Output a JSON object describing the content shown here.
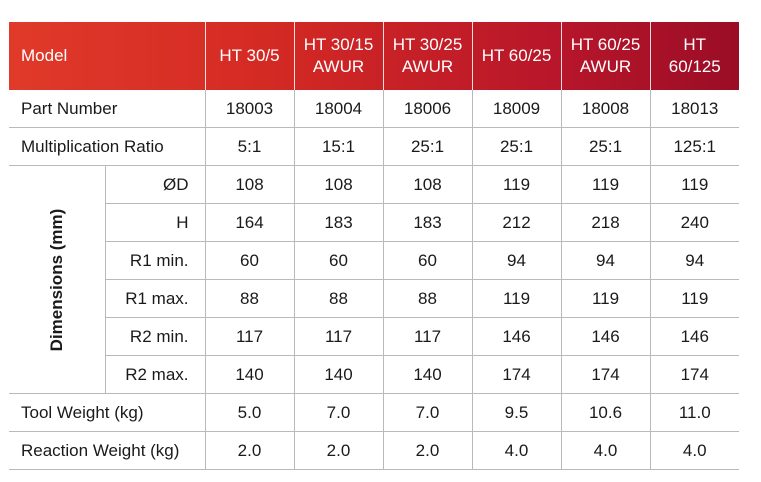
{
  "header": {
    "model_label": "Model",
    "models": [
      {
        "line1": "HT 30/5",
        "line2": ""
      },
      {
        "line1": "HT 30/15",
        "line2": "AWUR"
      },
      {
        "line1": "HT 30/25",
        "line2": "AWUR"
      },
      {
        "line1": "HT 60/25",
        "line2": ""
      },
      {
        "line1": "HT 60/25",
        "line2": "AWUR"
      },
      {
        "line1": "HT",
        "line2": "60/125"
      }
    ]
  },
  "rows": {
    "part_number": {
      "label": "Part Number",
      "values": [
        "18003",
        "18004",
        "18006",
        "18009",
        "18008",
        "18013"
      ]
    },
    "multiplication_ratio": {
      "label": "Multiplication Ratio",
      "values": [
        "5:1",
        "15:1",
        "25:1",
        "25:1",
        "25:1",
        "125:1"
      ]
    },
    "dimensions": {
      "group_label": "Dimensions (mm)",
      "items": [
        {
          "label": "ØD",
          "values": [
            "108",
            "108",
            "108",
            "119",
            "119",
            "119"
          ]
        },
        {
          "label": "H",
          "values": [
            "164",
            "183",
            "183",
            "212",
            "218",
            "240"
          ]
        },
        {
          "label": "R1 min.",
          "values": [
            "60",
            "60",
            "60",
            "94",
            "94",
            "94"
          ]
        },
        {
          "label": "R1 max.",
          "values": [
            "88",
            "88",
            "88",
            "119",
            "119",
            "119"
          ]
        },
        {
          "label": "R2 min.",
          "values": [
            "117",
            "117",
            "117",
            "146",
            "146",
            "146"
          ]
        },
        {
          "label": "R2 max.",
          "values": [
            "140",
            "140",
            "140",
            "174",
            "174",
            "174"
          ]
        }
      ]
    },
    "tool_weight": {
      "label": "Tool Weight (kg)",
      "values": [
        "5.0",
        "7.0",
        "7.0",
        "9.5",
        "10.6",
        "11.0"
      ]
    },
    "reaction_weight": {
      "label": "Reaction Weight (kg)",
      "values": [
        "2.0",
        "2.0",
        "2.0",
        "4.0",
        "4.0",
        "4.0"
      ]
    }
  },
  "colors": {
    "header_start": "#e03a2a",
    "header_end": "#9a0d26",
    "grid": "#b9b9b9"
  }
}
